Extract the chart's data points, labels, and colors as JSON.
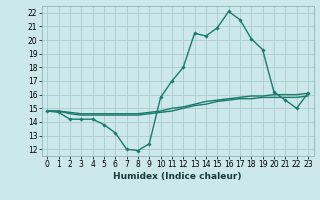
{
  "title": "",
  "xlabel": "Humidex (Indice chaleur)",
  "bg_color": "#cce8ea",
  "grid_color": "#aacccc",
  "line_color": "#1a7a6e",
  "xlim": [
    -0.5,
    23.5
  ],
  "ylim": [
    11.5,
    22.5
  ],
  "yticks": [
    12,
    13,
    14,
    15,
    16,
    17,
    18,
    19,
    20,
    21,
    22
  ],
  "xticks": [
    0,
    1,
    2,
    3,
    4,
    5,
    6,
    7,
    8,
    9,
    10,
    11,
    12,
    13,
    14,
    15,
    16,
    17,
    18,
    19,
    20,
    21,
    22,
    23
  ],
  "main_x": [
    0,
    1,
    2,
    3,
    4,
    5,
    6,
    7,
    8,
    9,
    10,
    11,
    12,
    13,
    14,
    15,
    16,
    17,
    18,
    19,
    20,
    21,
    22,
    23
  ],
  "main_y": [
    14.8,
    14.7,
    14.2,
    14.2,
    14.2,
    13.8,
    13.2,
    12.0,
    11.9,
    12.4,
    15.8,
    17.0,
    18.0,
    20.5,
    20.3,
    20.9,
    22.1,
    21.5,
    20.1,
    19.3,
    16.2,
    15.6,
    15.0,
    16.1
  ],
  "line2_x": [
    0,
    1,
    2,
    3,
    4,
    5,
    6,
    7,
    8,
    9,
    10,
    11,
    12,
    13,
    14,
    15,
    16,
    17,
    18,
    19,
    20,
    21,
    22,
    23
  ],
  "line2_y": [
    14.8,
    14.8,
    14.6,
    14.5,
    14.5,
    14.5,
    14.5,
    14.5,
    14.5,
    14.6,
    14.7,
    14.8,
    15.0,
    15.2,
    15.3,
    15.5,
    15.6,
    15.7,
    15.7,
    15.8,
    15.8,
    15.8,
    15.8,
    15.9
  ],
  "line3_x": [
    0,
    1,
    2,
    3,
    4,
    5,
    6,
    7,
    8,
    9,
    10,
    11,
    12,
    13,
    14,
    15,
    16,
    17,
    18,
    19,
    20,
    21,
    22,
    23
  ],
  "line3_y": [
    14.8,
    14.8,
    14.7,
    14.6,
    14.6,
    14.6,
    14.6,
    14.6,
    14.6,
    14.7,
    14.8,
    15.0,
    15.1,
    15.3,
    15.5,
    15.6,
    15.7,
    15.8,
    15.9,
    15.9,
    16.0,
    16.0,
    16.0,
    16.1
  ],
  "tick_fontsize": 5.5,
  "xlabel_fontsize": 6.5
}
